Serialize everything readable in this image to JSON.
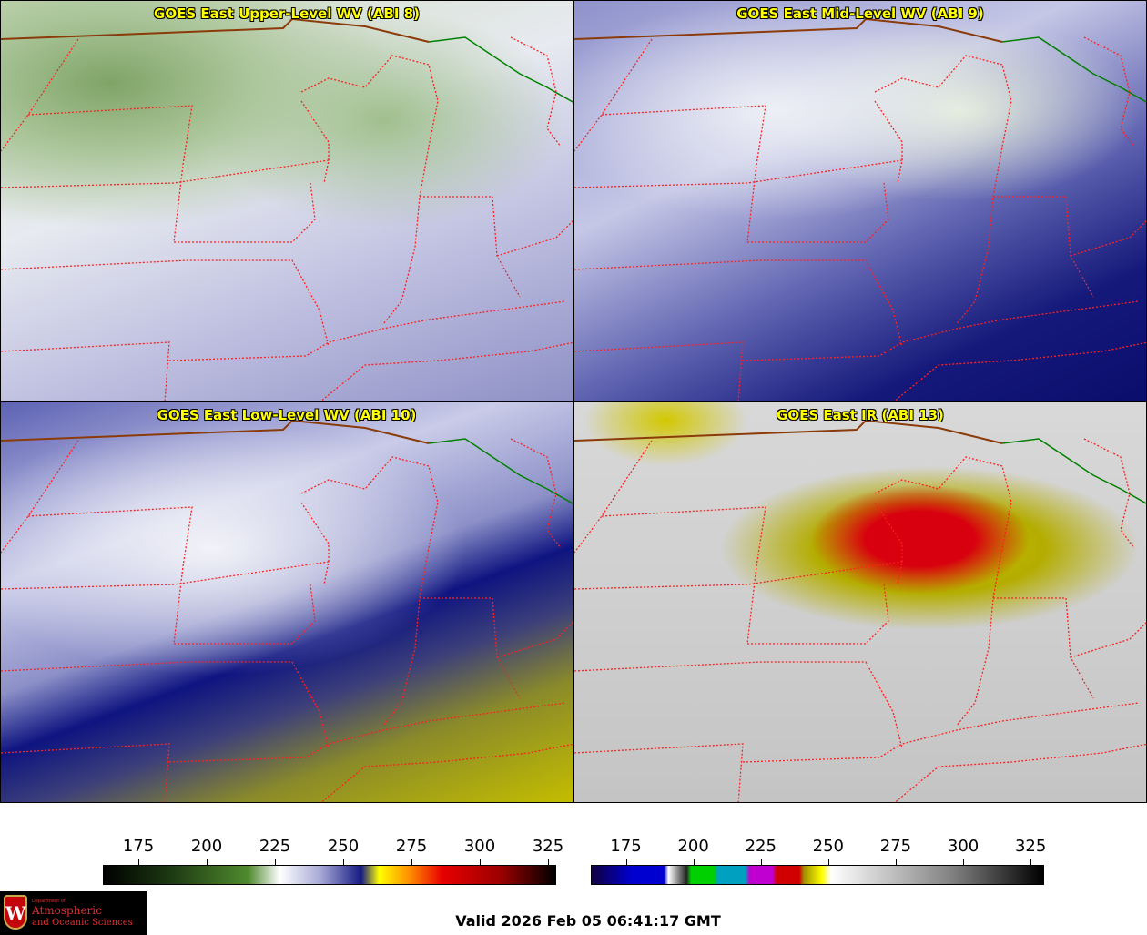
{
  "panels": [
    {
      "title": "GOES East Upper-Level WV (ABI 8)"
    },
    {
      "title": "GOES East Mid-Level WV (ABI 9)"
    },
    {
      "title": "GOES East Low-Level WV (ABI 10)"
    },
    {
      "title": "GOES East IR (ABI 13)"
    }
  ],
  "colorbar_wv": {
    "ticks": [
      "175",
      "200",
      "225",
      "250",
      "275",
      "300",
      "325"
    ],
    "range": [
      162,
      328
    ]
  },
  "colorbar_ir": {
    "ticks": [
      "175",
      "200",
      "225",
      "250",
      "275",
      "300",
      "325"
    ],
    "range": [
      162,
      330
    ]
  },
  "logo": {
    "line1": "Department of",
    "line2": "Atmospheric",
    "line3": "and Oceanic Sciences",
    "mark": "W"
  },
  "valid_time": "Valid 2026 Feb 05 06:41:17 GMT",
  "colors": {
    "state_border": "#ff2020",
    "country_border": "#8b3a0a",
    "coast": "#008000",
    "title": "#ffff00"
  }
}
